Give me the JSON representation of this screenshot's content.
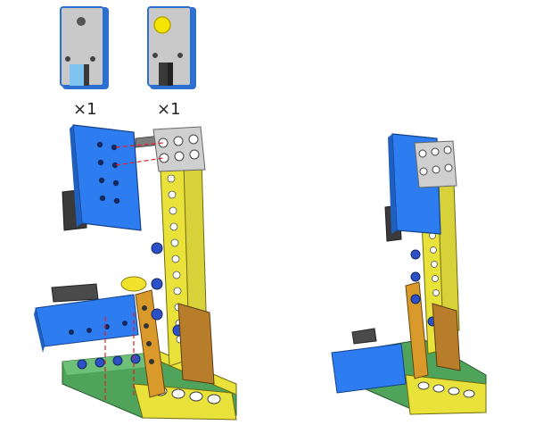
{
  "parts": [
    {
      "name": "sensor-gray-part",
      "quantity": "×1",
      "color": "#bdbdbd"
    },
    {
      "name": "sensor-yellow-button-part",
      "quantity": "×1",
      "color": "#f4e400"
    }
  ],
  "colors": {
    "blue": "#2d7df0",
    "yellow": "#e8e23a",
    "orange": "#d99a2b",
    "green": "#4fa35b",
    "gray": "#9a9a9a",
    "dark": "#3a3a3a",
    "guide": "#e0202a"
  }
}
